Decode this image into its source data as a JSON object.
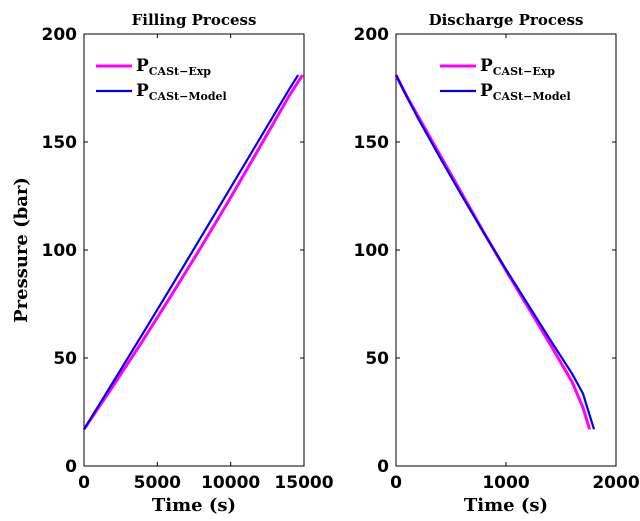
{
  "chart_data": [
    {
      "type": "line",
      "title": "Filling Process",
      "xlabel": "Time (s)",
      "ylabel": "Pressure (bar)",
      "xlim": [
        0,
        15000
      ],
      "ylim": [
        0,
        200
      ],
      "xticks": [
        0,
        5000,
        10000,
        15000
      ],
      "yticks": [
        0,
        50,
        100,
        150,
        200
      ],
      "legend_position": "top-left",
      "series": [
        {
          "name_main": "P",
          "name_sub": "CASt−Exp",
          "color": "#ff00ff",
          "x": [
            0,
            2000,
            4000,
            6000,
            8000,
            10000,
            12000,
            14000,
            14900
          ],
          "y": [
            17,
            37.2,
            58,
            79.5,
            101.5,
            124.3,
            147.8,
            171.5,
            181
          ]
        },
        {
          "name_main": "P",
          "name_sub": "CASt−Model",
          "color": "#0000ee",
          "x": [
            0,
            2000,
            4000,
            6000,
            8000,
            10000,
            12000,
            14000,
            14600
          ],
          "y": [
            17,
            39,
            61.2,
            83.6,
            106.2,
            128.9,
            151.7,
            174.5,
            181
          ]
        }
      ]
    },
    {
      "type": "line",
      "title": "Discharge Process",
      "xlabel": "Time (s)",
      "ylabel": "",
      "xlim": [
        0,
        2000
      ],
      "ylim": [
        0,
        200
      ],
      "xticks": [
        0,
        1000,
        2000
      ],
      "yticks": [
        0,
        50,
        100,
        150,
        200
      ],
      "legend_position": "top-right",
      "series": [
        {
          "name_main": "P",
          "name_sub": "CASt−Exp",
          "color": "#ff00ff",
          "x": [
            0,
            100,
            200,
            400,
            600,
            800,
            1000,
            1200,
            1400,
            1600,
            1700,
            1760
          ],
          "y": [
            181,
            171,
            162,
            144,
            126,
            108,
            90.5,
            73.5,
            56.5,
            39,
            27,
            17
          ]
        },
        {
          "name_main": "P",
          "name_sub": "CASt−Model",
          "color": "#0000ee",
          "x": [
            0,
            100,
            200,
            400,
            600,
            800,
            1000,
            1200,
            1400,
            1600,
            1700,
            1800
          ],
          "y": [
            181,
            170.8,
            161,
            142.8,
            125,
            107.8,
            91,
            74.8,
            58.6,
            42.8,
            33.5,
            17
          ]
        }
      ]
    }
  ]
}
